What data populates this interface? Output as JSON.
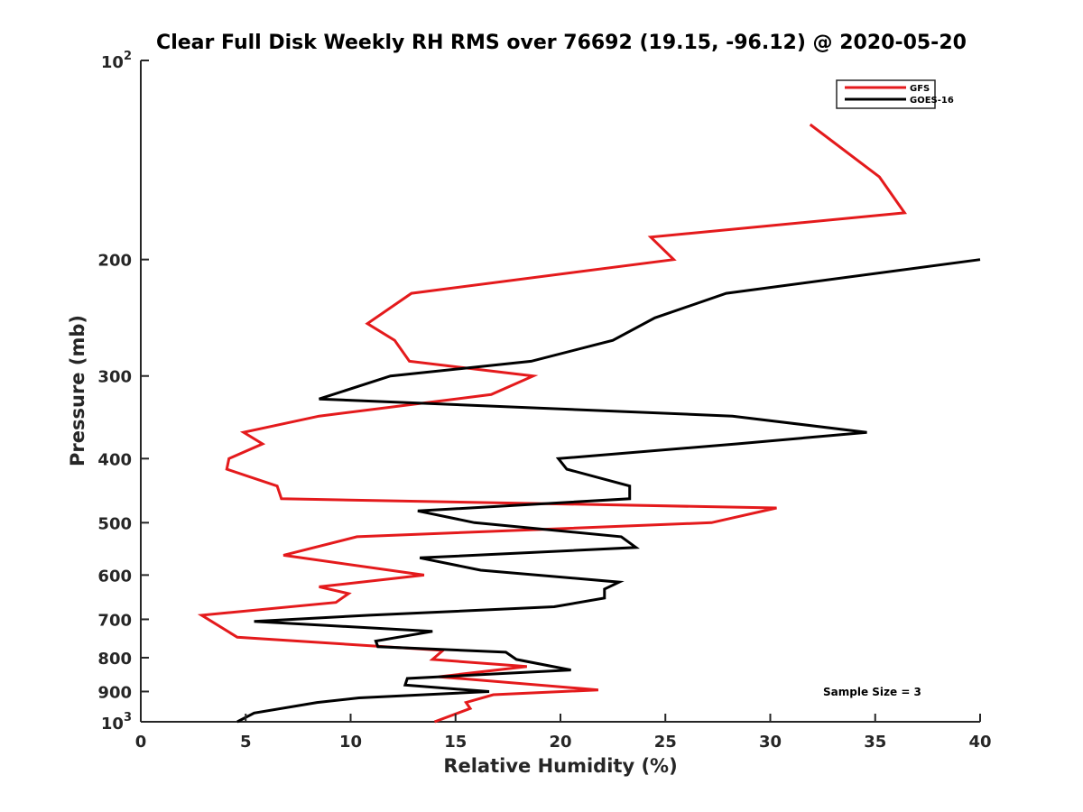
{
  "chart_data": {
    "type": "line",
    "title": "Clear Full Disk Weekly RH RMS over 76692 (19.15, -96.12) @ 2020-05-20",
    "xlabel": "Relative Humidity (%)",
    "ylabel": "Pressure (mb)",
    "xlim": [
      0,
      40
    ],
    "ylim": [
      100,
      1000
    ],
    "yscale": "log",
    "y_reversed": true,
    "x_ticks": [
      0,
      5,
      10,
      15,
      20,
      25,
      30,
      35,
      40
    ],
    "x_tick_labels": [
      "0",
      "5",
      "10",
      "15",
      "20",
      "25",
      "30",
      "35",
      "40"
    ],
    "y_ticks": [
      200,
      300,
      400,
      500,
      600,
      700,
      800,
      900
    ],
    "y_tick_labels": [
      "200",
      "300",
      "400",
      "500",
      "600",
      "700",
      "800",
      "900"
    ],
    "y_extreme_labels": {
      "top": {
        "value": 100,
        "base": "10",
        "exp": "2"
      },
      "bottom": {
        "value": 1000,
        "base": "10",
        "exp": "3"
      }
    },
    "legend_position": "top-right",
    "annotation": "Sample Size = 3",
    "series": [
      {
        "name": "GFS",
        "color": "#e41a1c",
        "points": [
          [
            31.9,
            125
          ],
          [
            35.2,
            150
          ],
          [
            36.4,
            170
          ],
          [
            24.3,
            185
          ],
          [
            25.4,
            200
          ],
          [
            12.9,
            225
          ],
          [
            10.8,
            250
          ],
          [
            12.1,
            265
          ],
          [
            12.8,
            285
          ],
          [
            18.7,
            300
          ],
          [
            16.7,
            320
          ],
          [
            8.5,
            345
          ],
          [
            4.9,
            365
          ],
          [
            5.8,
            380
          ],
          [
            4.2,
            400
          ],
          [
            4.1,
            415
          ],
          [
            6.5,
            440
          ],
          [
            6.7,
            460
          ],
          [
            30.3,
            475
          ],
          [
            27.2,
            500
          ],
          [
            10.3,
            525
          ],
          [
            6.8,
            560
          ],
          [
            13.5,
            600
          ],
          [
            8.5,
            625
          ],
          [
            9.9,
            640
          ],
          [
            9.3,
            660
          ],
          [
            2.9,
            690
          ],
          [
            4.6,
            745
          ],
          [
            14.4,
            780
          ],
          [
            13.9,
            805
          ],
          [
            18.4,
            825
          ],
          [
            14.2,
            855
          ],
          [
            21.8,
            895
          ],
          [
            16.8,
            910
          ],
          [
            15.5,
            935
          ],
          [
            15.7,
            955
          ],
          [
            14.0,
            1000
          ]
        ]
      },
      {
        "name": "GOES-16",
        "color": "#000000",
        "points": [
          [
            40.0,
            200
          ],
          [
            27.9,
            225
          ],
          [
            24.5,
            245
          ],
          [
            22.5,
            265
          ],
          [
            18.6,
            285
          ],
          [
            11.9,
            300
          ],
          [
            8.5,
            325
          ],
          [
            28.2,
            345
          ],
          [
            34.6,
            365
          ],
          [
            28.4,
            380
          ],
          [
            19.9,
            400
          ],
          [
            20.3,
            415
          ],
          [
            23.3,
            440
          ],
          [
            23.3,
            460
          ],
          [
            13.2,
            480
          ],
          [
            15.9,
            500
          ],
          [
            22.9,
            525
          ],
          [
            23.6,
            545
          ],
          [
            13.3,
            565
          ],
          [
            16.2,
            590
          ],
          [
            22.8,
            615
          ],
          [
            22.1,
            630
          ],
          [
            22.1,
            650
          ],
          [
            19.7,
            670
          ],
          [
            10.9,
            690
          ],
          [
            5.4,
            705
          ],
          [
            13.9,
            730
          ],
          [
            11.2,
            755
          ],
          [
            11.3,
            770
          ],
          [
            17.4,
            785
          ],
          [
            17.9,
            805
          ],
          [
            20.5,
            835
          ],
          [
            12.7,
            860
          ],
          [
            12.6,
            880
          ],
          [
            16.6,
            900
          ],
          [
            10.4,
            920
          ],
          [
            8.4,
            935
          ],
          [
            5.4,
            970
          ],
          [
            4.6,
            1000
          ]
        ]
      }
    ]
  }
}
